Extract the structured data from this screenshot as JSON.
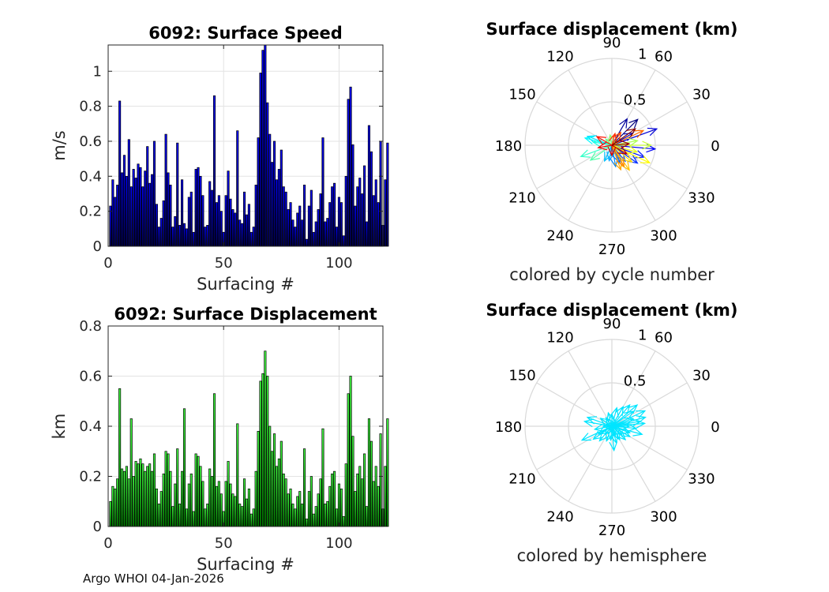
{
  "figure": {
    "footer": "Argo WHOI 04-Jan-2026"
  },
  "chart_data": [
    {
      "type": "bar",
      "id": "speed",
      "title": "6092: Surface Speed",
      "xlabel": "Surfacing #",
      "ylabel": "m/s",
      "xlim": [
        0,
        119
      ],
      "ylim": [
        0,
        1.15
      ],
      "xticks": [
        0,
        50,
        100
      ],
      "yticks": [
        0,
        0.2,
        0.4,
        0.6,
        0.8,
        1
      ],
      "ytick_labels": [
        "0",
        "0.2",
        "0.4",
        "0.6",
        "0.8",
        "1"
      ],
      "grid": true,
      "colors": {
        "fill_top": "#0000ff",
        "fill_bottom": "#000050",
        "edge": "#000000"
      },
      "values": [
        0.23,
        0.38,
        0.28,
        0.35,
        0.83,
        0.42,
        0.52,
        0.4,
        0.61,
        0.34,
        0.44,
        0.39,
        0.47,
        0.45,
        0.34,
        0.43,
        0.57,
        0.36,
        0.41,
        0.6,
        0.24,
        0.11,
        0.16,
        0.26,
        0.64,
        0.42,
        0.35,
        0.11,
        0.17,
        0.59,
        0.12,
        0.38,
        0.13,
        0.1,
        0.28,
        0.31,
        0.08,
        0.44,
        0.45,
        0.4,
        0.29,
        0.11,
        0.12,
        0.37,
        0.32,
        0.86,
        0.25,
        0.29,
        0.2,
        0.08,
        0.29,
        0.43,
        0.27,
        0.21,
        0.19,
        0.66,
        0.15,
        0.13,
        0.31,
        0.18,
        0.24,
        0.08,
        0.11,
        0.35,
        0.62,
        0.99,
        1.12,
        1.15,
        0.82,
        0.64,
        0.48,
        0.6,
        0.38,
        0.44,
        0.55,
        0.34,
        0.31,
        0.21,
        0.25,
        0.15,
        0.11,
        0.19,
        0.23,
        0.15,
        0.35,
        0.04,
        0.23,
        0.32,
        0.08,
        0.14,
        0.21,
        0.3,
        0.62,
        0.14,
        0.16,
        0.25,
        0.34,
        0.36,
        0.11,
        0.28,
        0.25,
        0.06,
        0.4,
        0.84,
        0.91,
        0.58,
        0.23,
        0.34,
        0.39,
        0.3,
        0.46,
        0.14,
        0.69,
        0.54,
        0.29,
        0.38,
        0.25,
        0.6,
        0.12,
        0.38,
        0.59
      ]
    },
    {
      "type": "bar",
      "id": "displacement",
      "title": "6092: Surface Displacement",
      "xlabel": "Surfacing #",
      "ylabel": "km",
      "xlim": [
        0,
        119
      ],
      "ylim": [
        0,
        0.8
      ],
      "xticks": [
        0,
        50,
        100
      ],
      "yticks": [
        0,
        0.2,
        0.4,
        0.6,
        0.8
      ],
      "ytick_labels": [
        "0",
        "0.2",
        "0.4",
        "0.6",
        "0.8"
      ],
      "grid": true,
      "colors": {
        "fill_top": "#44ff44",
        "fill_bottom": "#007a00",
        "edge": "#000000"
      },
      "values": [
        0.1,
        0.16,
        0.15,
        0.19,
        0.55,
        0.23,
        0.22,
        0.24,
        0.19,
        0.43,
        0.2,
        0.26,
        0.25,
        0.27,
        0.25,
        0.22,
        0.24,
        0.25,
        0.22,
        0.29,
        0.15,
        0.09,
        0.14,
        0.21,
        0.3,
        0.29,
        0.22,
        0.08,
        0.17,
        0.31,
        0.09,
        0.22,
        0.47,
        0.07,
        0.17,
        0.21,
        0.06,
        0.29,
        0.28,
        0.24,
        0.18,
        0.07,
        0.09,
        0.23,
        0.2,
        0.53,
        0.16,
        0.18,
        0.13,
        0.06,
        0.18,
        0.26,
        0.17,
        0.13,
        0.12,
        0.41,
        0.09,
        0.08,
        0.19,
        0.11,
        0.15,
        0.05,
        0.07,
        0.22,
        0.38,
        0.58,
        0.61,
        0.7,
        0.6,
        0.4,
        0.3,
        0.37,
        0.24,
        0.27,
        0.34,
        0.21,
        0.19,
        0.13,
        0.15,
        0.09,
        0.07,
        0.12,
        0.14,
        0.09,
        0.31,
        0.03,
        0.14,
        0.2,
        0.05,
        0.08,
        0.13,
        0.19,
        0.39,
        0.09,
        0.1,
        0.16,
        0.21,
        0.22,
        0.07,
        0.17,
        0.15,
        0.04,
        0.25,
        0.53,
        0.6,
        0.36,
        0.14,
        0.21,
        0.24,
        0.19,
        0.29,
        0.08,
        0.43,
        0.34,
        0.18,
        0.24,
        0.16,
        0.37,
        0.07,
        0.24,
        0.43
      ]
    },
    {
      "type": "polar_compass",
      "id": "compass_cycle",
      "title": "Surface displacement (km)",
      "caption": "colored by cycle number",
      "rmax": 1,
      "r_tick_labels": [
        "0.5",
        "1"
      ],
      "angle_labels": [
        "0",
        "30",
        "60",
        "90",
        "120",
        "150",
        "180",
        "210",
        "240",
        "270",
        "300",
        "330"
      ],
      "coloring": "cycle",
      "colors": {
        "grid": "#d9d9d9",
        "hemisphere": "#00e5ff"
      },
      "vectors": [
        {
          "angle_deg": 45,
          "r": 0.42
        },
        {
          "angle_deg": 60,
          "r": 0.35
        },
        {
          "angle_deg": 30,
          "r": 0.28
        },
        {
          "angle_deg": 20,
          "r": 0.55
        },
        {
          "angle_deg": -5,
          "r": 0.5
        },
        {
          "angle_deg": -20,
          "r": 0.4
        },
        {
          "angle_deg": -35,
          "r": 0.36
        },
        {
          "angle_deg": -50,
          "r": 0.24
        },
        {
          "angle_deg": -65,
          "r": 0.22
        },
        {
          "angle_deg": -80,
          "r": 0.25
        },
        {
          "angle_deg": -100,
          "r": 0.18
        },
        {
          "angle_deg": -115,
          "r": 0.2
        },
        {
          "angle_deg": 160,
          "r": 0.3
        },
        {
          "angle_deg": 165,
          "r": 0.32
        },
        {
          "angle_deg": 170,
          "r": 0.22
        },
        {
          "angle_deg": 200,
          "r": 0.38
        },
        {
          "angle_deg": 215,
          "r": 0.3
        },
        {
          "angle_deg": 135,
          "r": 0.1
        },
        {
          "angle_deg": 100,
          "r": 0.12
        },
        {
          "angle_deg": 10,
          "r": 0.3
        },
        {
          "angle_deg": 0,
          "r": 0.45
        },
        {
          "angle_deg": -15,
          "r": 0.3
        },
        {
          "angle_deg": -25,
          "r": 0.48
        },
        {
          "angle_deg": -40,
          "r": 0.3
        },
        {
          "angle_deg": -55,
          "r": 0.35
        },
        {
          "angle_deg": -70,
          "r": 0.3
        },
        {
          "angle_deg": -60,
          "r": 0.28
        },
        {
          "angle_deg": 25,
          "r": 0.4
        },
        {
          "angle_deg": 55,
          "r": 0.18
        },
        {
          "angle_deg": 75,
          "r": 0.14
        },
        {
          "angle_deg": 150,
          "r": 0.2
        },
        {
          "angle_deg": 190,
          "r": 0.16
        },
        {
          "angle_deg": -90,
          "r": 0.12
        },
        {
          "angle_deg": -30,
          "r": 0.2
        },
        {
          "angle_deg": 5,
          "r": 0.2
        },
        {
          "angle_deg": 35,
          "r": 0.33
        }
      ]
    },
    {
      "type": "polar_compass",
      "id": "compass_hemisphere",
      "title": "Surface displacement (km)",
      "caption": "colored by hemisphere",
      "rmax": 1,
      "r_tick_labels": [
        "0.5",
        "1"
      ],
      "angle_labels": [
        "0",
        "30",
        "60",
        "90",
        "120",
        "150",
        "180",
        "210",
        "240",
        "270",
        "300",
        "330"
      ],
      "coloring": "hemisphere",
      "colors": {
        "grid": "#d9d9d9",
        "hemisphere": "#00e5ff"
      },
      "vectors": [
        {
          "angle_deg": 50,
          "r": 0.32
        },
        {
          "angle_deg": 35,
          "r": 0.3
        },
        {
          "angle_deg": 25,
          "r": 0.42
        },
        {
          "angle_deg": 15,
          "r": 0.4
        },
        {
          "angle_deg": 5,
          "r": 0.38
        },
        {
          "angle_deg": -5,
          "r": 0.28
        },
        {
          "angle_deg": -15,
          "r": 0.36
        },
        {
          "angle_deg": -30,
          "r": 0.24
        },
        {
          "angle_deg": -45,
          "r": 0.22
        },
        {
          "angle_deg": -60,
          "r": 0.18
        },
        {
          "angle_deg": -75,
          "r": 0.2
        },
        {
          "angle_deg": -95,
          "r": 0.16
        },
        {
          "angle_deg": -110,
          "r": 0.18
        },
        {
          "angle_deg": -130,
          "r": 0.22
        },
        {
          "angle_deg": -150,
          "r": 0.18
        },
        {
          "angle_deg": 170,
          "r": 0.32
        },
        {
          "angle_deg": 160,
          "r": 0.3
        },
        {
          "angle_deg": 190,
          "r": 0.2
        },
        {
          "angle_deg": 205,
          "r": 0.38
        },
        {
          "angle_deg": 215,
          "r": 0.26
        },
        {
          "angle_deg": 145,
          "r": 0.16
        },
        {
          "angle_deg": 125,
          "r": 0.12
        },
        {
          "angle_deg": 105,
          "r": 0.16
        },
        {
          "angle_deg": 90,
          "r": 0.14
        },
        {
          "angle_deg": 75,
          "r": 0.22
        },
        {
          "angle_deg": 60,
          "r": 0.26
        },
        {
          "angle_deg": 40,
          "r": 0.38
        },
        {
          "angle_deg": 20,
          "r": 0.26
        },
        {
          "angle_deg": 0,
          "r": 0.2
        },
        {
          "angle_deg": -20,
          "r": 0.22
        },
        {
          "angle_deg": -40,
          "r": 0.15
        },
        {
          "angle_deg": -70,
          "r": 0.12
        },
        {
          "angle_deg": -85,
          "r": 0.28
        },
        {
          "angle_deg": 180,
          "r": 0.1
        },
        {
          "angle_deg": 230,
          "r": 0.12
        },
        {
          "angle_deg": 10,
          "r": 0.33
        }
      ]
    }
  ]
}
